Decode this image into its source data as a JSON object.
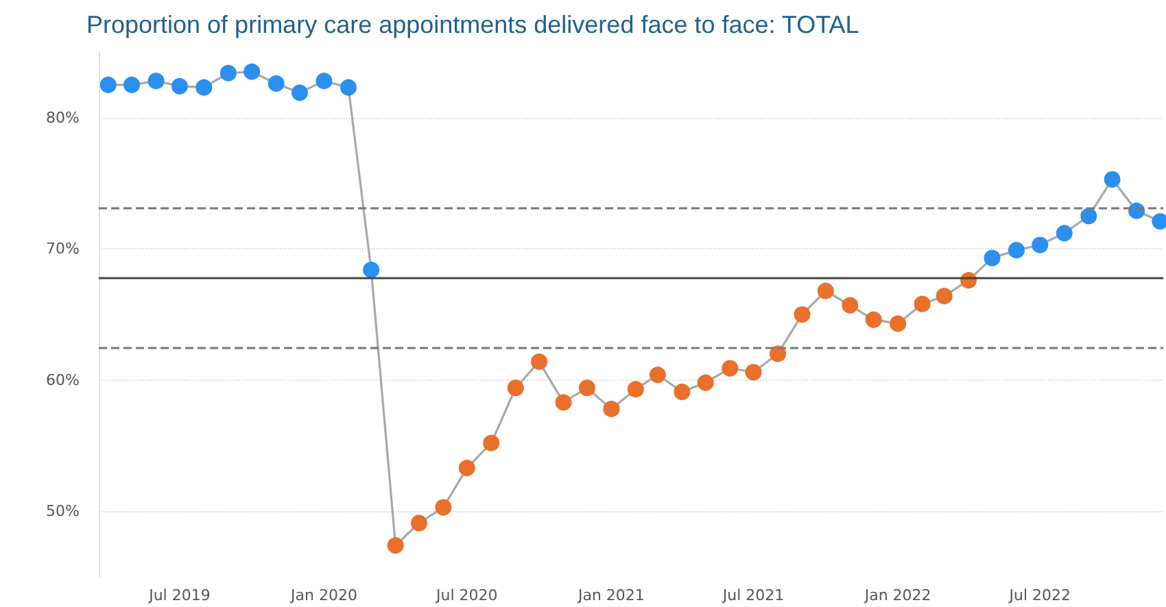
{
  "chart_data": {
    "type": "line",
    "title": "Proportion of primary care appointments delivered face to face: TOTAL",
    "x": [
      "2019-04",
      "2019-05",
      "2019-06",
      "2019-07",
      "2019-08",
      "2019-09",
      "2019-10",
      "2019-11",
      "2019-12",
      "2020-01",
      "2020-02",
      "2020-03",
      "2020-04",
      "2020-05",
      "2020-06",
      "2020-07",
      "2020-08",
      "2020-09",
      "2020-10",
      "2020-11",
      "2020-12",
      "2021-01",
      "2021-02",
      "2021-03",
      "2021-04",
      "2021-05",
      "2021-06",
      "2021-07",
      "2021-08",
      "2021-09",
      "2021-10",
      "2021-11",
      "2021-12",
      "2022-01",
      "2022-02",
      "2022-03",
      "2022-04",
      "2022-05",
      "2022-06",
      "2022-07",
      "2022-08",
      "2022-09",
      "2022-10",
      "2022-11",
      "2022-12"
    ],
    "series": [
      {
        "color": "#a8a8a8",
        "values": [
          82.5,
          82.5,
          82.8,
          82.4,
          82.3,
          83.4,
          83.5,
          82.6,
          81.9,
          82.8,
          82.3,
          68.4,
          47.4,
          49.1,
          50.3,
          53.3,
          55.2,
          59.4,
          61.4,
          58.3,
          59.4,
          57.8,
          59.3,
          60.4,
          59.1,
          59.8,
          60.9,
          60.6,
          62.0,
          65.0,
          66.8,
          65.7,
          64.6,
          64.3,
          65.8,
          66.4,
          67.6,
          69.3,
          69.9,
          70.3,
          71.2,
          72.5,
          75.3,
          72.9,
          72.1
        ],
        "colors": [
          "#2b8ff0",
          "#2b8ff0",
          "#2b8ff0",
          "#2b8ff0",
          "#2b8ff0",
          "#2b8ff0",
          "#2b8ff0",
          "#2b8ff0",
          "#2b8ff0",
          "#2b8ff0",
          "#2b8ff0",
          "#2b8ff0",
          "#e8702a",
          "#e8702a",
          "#e8702a",
          "#e8702a",
          "#e8702a",
          "#e8702a",
          "#e8702a",
          "#e8702a",
          "#e8702a",
          "#e8702a",
          "#e8702a",
          "#e8702a",
          "#e8702a",
          "#e8702a",
          "#e8702a",
          "#e8702a",
          "#e8702a",
          "#e8702a",
          "#e8702a",
          "#e8702a",
          "#e8702a",
          "#e8702a",
          "#e8702a",
          "#e8702a",
          "#e8702a",
          "#2b8ff0",
          "#2b8ff0",
          "#2b8ff0",
          "#2b8ff0",
          "#2b8ff0",
          "#2b8ff0",
          "#2b8ff0",
          "#2b8ff0"
        ]
      }
    ],
    "xlim": [
      "2019-03-20",
      "2022-12-05"
    ],
    "xticks": [
      {
        "value": "2019-07",
        "label": "Jul 2019"
      },
      {
        "value": "2020-01",
        "label": "Jan 2020"
      },
      {
        "value": "2020-07",
        "label": "Jul 2020"
      },
      {
        "value": "2021-01",
        "label": "Jan 2021"
      },
      {
        "value": "2021-07",
        "label": "Jul 2021"
      },
      {
        "value": "2022-01",
        "label": "Jan 2022"
      },
      {
        "value": "2022-07",
        "label": "Jul 2022"
      }
    ],
    "ylim": [
      45,
      85
    ],
    "yticks": [
      {
        "value": 50,
        "label": "50%"
      },
      {
        "value": 60,
        "label": "60%"
      },
      {
        "value": 70,
        "label": "70%"
      },
      {
        "value": 80,
        "label": "80%"
      }
    ],
    "ref_lines": [
      {
        "axis": "y",
        "value": 67.8,
        "color": "#444444",
        "line_style": "solid"
      },
      {
        "axis": "y",
        "value": 73.1,
        "color": "#777777",
        "line_style": "dashed"
      },
      {
        "axis": "y",
        "value": 62.5,
        "color": "#777777",
        "line_style": "dashed"
      }
    ],
    "grid": "y",
    "marker": "circle",
    "line_style": "solid"
  }
}
